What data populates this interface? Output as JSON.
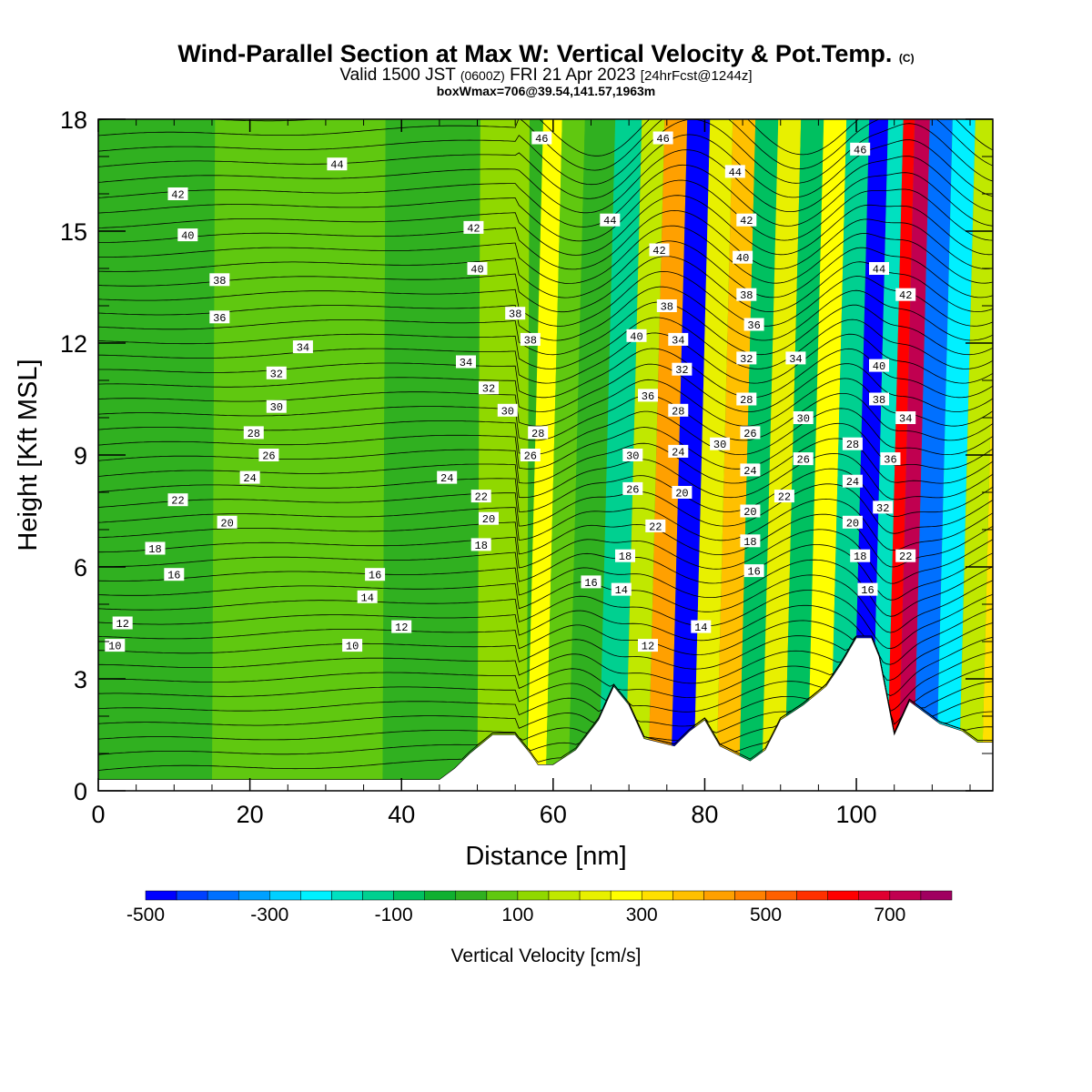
{
  "header": {
    "title": "Wind-Parallel Section at Max W: Vertical Velocity & Pot.Temp.",
    "title_mark": "(C)",
    "valid_prefix": "Valid 1500 JST",
    "valid_utc": "(0600Z)",
    "valid_date": "FRI 21 Apr 2023",
    "forecast": "[24hrFcst@1244z]",
    "boxmax": "boxWmax=706@39.54,141.57,1963m"
  },
  "chart_data": {
    "type": "heatmap",
    "title": "Wind-Parallel Section at Max W: Vertical Velocity & Pot.Temp.",
    "xlabel": "Distance [nm]",
    "ylabel": "Height [Kft MSL]",
    "xlim": [
      0,
      118
    ],
    "ylim": [
      0,
      18
    ],
    "x_ticks": [
      0,
      20,
      40,
      60,
      80,
      100
    ],
    "y_ticks": [
      0,
      3,
      6,
      9,
      12,
      15,
      18
    ],
    "colorbar": {
      "label": "Vertical Velocity [cm/s]",
      "range": [
        -500,
        800
      ],
      "step": 50,
      "tick_labels": [
        -500,
        -300,
        -100,
        100,
        300,
        500,
        700
      ],
      "colors": [
        "#0000ff",
        "#0040ff",
        "#0070ff",
        "#00a0ff",
        "#00d0ff",
        "#00f0ff",
        "#00e0c0",
        "#00d090",
        "#00c060",
        "#10b030",
        "#30b020",
        "#60c810",
        "#90d800",
        "#c0e800",
        "#e8f000",
        "#ffff00",
        "#ffe000",
        "#ffc000",
        "#ffa000",
        "#ff8000",
        "#ff6000",
        "#ff3000",
        "#ff0000",
        "#e00030",
        "#c00050",
        "#a00060"
      ]
    },
    "vertical_velocity_columns": [
      {
        "x": 0,
        "w": 30
      },
      {
        "x": 30,
        "w": 70
      },
      {
        "x": 45,
        "w": 20
      },
      {
        "x": 55,
        "w": 120
      },
      {
        "x": 58,
        "w": 260
      },
      {
        "x": 60,
        "w": 60
      },
      {
        "x": 64,
        "w": 30
      },
      {
        "x": 68,
        "w": -120
      },
      {
        "x": 71,
        "w": 180
      },
      {
        "x": 74,
        "w": 420
      },
      {
        "x": 77,
        "w": -480
      },
      {
        "x": 80,
        "w": 200
      },
      {
        "x": 83,
        "w": 350
      },
      {
        "x": 86,
        "w": -100
      },
      {
        "x": 89,
        "w": 220
      },
      {
        "x": 92,
        "w": -80
      },
      {
        "x": 95,
        "w": 260
      },
      {
        "x": 98,
        "w": -120
      },
      {
        "x": 101,
        "w": -460
      },
      {
        "x": 103,
        "w": -200
      },
      {
        "x": 105,
        "w": 640
      },
      {
        "x": 106,
        "w": 706
      },
      {
        "x": 109,
        "w": -380
      },
      {
        "x": 112,
        "w": -250
      },
      {
        "x": 115,
        "w": 150
      },
      {
        "x": 118,
        "w": 320
      }
    ],
    "terrain": [
      {
        "x": 0,
        "h": 0.3
      },
      {
        "x": 45,
        "h": 0.3
      },
      {
        "x": 47,
        "h": 0.6
      },
      {
        "x": 49,
        "h": 1.0
      },
      {
        "x": 52,
        "h": 1.5
      },
      {
        "x": 55,
        "h": 1.5
      },
      {
        "x": 57,
        "h": 1.0
      },
      {
        "x": 58,
        "h": 0.7
      },
      {
        "x": 60,
        "h": 0.7
      },
      {
        "x": 63,
        "h": 1.1
      },
      {
        "x": 66,
        "h": 1.9
      },
      {
        "x": 68,
        "h": 2.8
      },
      {
        "x": 70,
        "h": 2.3
      },
      {
        "x": 72,
        "h": 1.4
      },
      {
        "x": 74,
        "h": 1.3
      },
      {
        "x": 76,
        "h": 1.2
      },
      {
        "x": 78,
        "h": 1.6
      },
      {
        "x": 80,
        "h": 1.9
      },
      {
        "x": 82,
        "h": 1.2
      },
      {
        "x": 84,
        "h": 1.0
      },
      {
        "x": 86,
        "h": 0.8
      },
      {
        "x": 88,
        "h": 1.1
      },
      {
        "x": 90,
        "h": 1.9
      },
      {
        "x": 93,
        "h": 2.3
      },
      {
        "x": 96,
        "h": 2.8
      },
      {
        "x": 98,
        "h": 3.4
      },
      {
        "x": 100,
        "h": 4.1
      },
      {
        "x": 102,
        "h": 4.1
      },
      {
        "x": 103,
        "h": 3.6
      },
      {
        "x": 105,
        "h": 1.5
      },
      {
        "x": 107,
        "h": 2.4
      },
      {
        "x": 109,
        "h": 2.1
      },
      {
        "x": 111,
        "h": 1.8
      },
      {
        "x": 114,
        "h": 1.6
      },
      {
        "x": 116,
        "h": 1.3
      },
      {
        "x": 118,
        "h": 1.3
      }
    ],
    "theta_labels": [
      {
        "x": 31.5,
        "y": 16.8,
        "text": "44"
      },
      {
        "x": 10.5,
        "y": 16.0,
        "text": "42"
      },
      {
        "x": 11.8,
        "y": 14.9,
        "text": "40"
      },
      {
        "x": 16.0,
        "y": 13.7,
        "text": "38"
      },
      {
        "x": 16.0,
        "y": 12.7,
        "text": "36"
      },
      {
        "x": 27.0,
        "y": 11.9,
        "text": "34"
      },
      {
        "x": 23.5,
        "y": 11.2,
        "text": "32"
      },
      {
        "x": 23.5,
        "y": 10.3,
        "text": "30"
      },
      {
        "x": 20.5,
        "y": 9.6,
        "text": "28"
      },
      {
        "x": 22.5,
        "y": 9.0,
        "text": "26"
      },
      {
        "x": 20.0,
        "y": 8.4,
        "text": "24"
      },
      {
        "x": 10.5,
        "y": 7.8,
        "text": "22"
      },
      {
        "x": 17.0,
        "y": 7.2,
        "text": "20"
      },
      {
        "x": 7.5,
        "y": 6.5,
        "text": "18"
      },
      {
        "x": 10.0,
        "y": 5.8,
        "text": "16"
      },
      {
        "x": 3.2,
        "y": 4.5,
        "text": "12"
      },
      {
        "x": 2.2,
        "y": 3.9,
        "text": "10"
      },
      {
        "x": 49.5,
        "y": 15.1,
        "text": "42"
      },
      {
        "x": 50.0,
        "y": 14.0,
        "text": "40"
      },
      {
        "x": 55.0,
        "y": 12.8,
        "text": "38"
      },
      {
        "x": 57.0,
        "y": 12.1,
        "text": "38"
      },
      {
        "x": 48.5,
        "y": 11.5,
        "text": "34"
      },
      {
        "x": 51.5,
        "y": 10.8,
        "text": "32"
      },
      {
        "x": 54.0,
        "y": 10.2,
        "text": "30"
      },
      {
        "x": 58.0,
        "y": 9.6,
        "text": "28"
      },
      {
        "x": 57.0,
        "y": 9.0,
        "text": "26"
      },
      {
        "x": 46.0,
        "y": 8.4,
        "text": "24"
      },
      {
        "x": 50.5,
        "y": 7.9,
        "text": "22"
      },
      {
        "x": 51.5,
        "y": 7.3,
        "text": "20"
      },
      {
        "x": 50.5,
        "y": 6.6,
        "text": "18"
      },
      {
        "x": 36.5,
        "y": 5.8,
        "text": "16"
      },
      {
        "x": 35.5,
        "y": 5.2,
        "text": "14"
      },
      {
        "x": 40.0,
        "y": 4.4,
        "text": "12"
      },
      {
        "x": 33.5,
        "y": 3.9,
        "text": "10"
      },
      {
        "x": 58.5,
        "y": 17.5,
        "text": "46"
      },
      {
        "x": 67.5,
        "y": 15.3,
        "text": "44"
      },
      {
        "x": 74.5,
        "y": 17.5,
        "text": "46"
      },
      {
        "x": 74.0,
        "y": 14.5,
        "text": "42"
      },
      {
        "x": 75.0,
        "y": 13.0,
        "text": "38"
      },
      {
        "x": 71.0,
        "y": 12.2,
        "text": "40"
      },
      {
        "x": 76.5,
        "y": 12.1,
        "text": "34"
      },
      {
        "x": 77.0,
        "y": 11.3,
        "text": "32"
      },
      {
        "x": 72.5,
        "y": 10.6,
        "text": "36"
      },
      {
        "x": 76.5,
        "y": 10.2,
        "text": "28"
      },
      {
        "x": 70.5,
        "y": 9.0,
        "text": "30"
      },
      {
        "x": 76.5,
        "y": 9.1,
        "text": "24"
      },
      {
        "x": 70.5,
        "y": 8.1,
        "text": "26"
      },
      {
        "x": 77.0,
        "y": 8.0,
        "text": "20"
      },
      {
        "x": 73.5,
        "y": 7.1,
        "text": "22"
      },
      {
        "x": 69.5,
        "y": 6.3,
        "text": "18"
      },
      {
        "x": 65.0,
        "y": 5.6,
        "text": "16"
      },
      {
        "x": 69.0,
        "y": 5.4,
        "text": "14"
      },
      {
        "x": 72.5,
        "y": 3.9,
        "text": "12"
      },
      {
        "x": 84.0,
        "y": 16.6,
        "text": "44"
      },
      {
        "x": 85.5,
        "y": 15.3,
        "text": "42"
      },
      {
        "x": 85.0,
        "y": 14.3,
        "text": "40"
      },
      {
        "x": 85.5,
        "y": 13.3,
        "text": "38"
      },
      {
        "x": 86.5,
        "y": 12.5,
        "text": "36"
      },
      {
        "x": 85.5,
        "y": 11.6,
        "text": "32"
      },
      {
        "x": 92.0,
        "y": 11.6,
        "text": "34"
      },
      {
        "x": 85.5,
        "y": 10.5,
        "text": "28"
      },
      {
        "x": 86.0,
        "y": 9.6,
        "text": "26"
      },
      {
        "x": 82.0,
        "y": 9.3,
        "text": "30"
      },
      {
        "x": 93.0,
        "y": 10.0,
        "text": "30"
      },
      {
        "x": 93.0,
        "y": 8.9,
        "text": "26"
      },
      {
        "x": 86.0,
        "y": 8.6,
        "text": "24"
      },
      {
        "x": 90.5,
        "y": 7.9,
        "text": "22"
      },
      {
        "x": 86.0,
        "y": 7.5,
        "text": "20"
      },
      {
        "x": 86.0,
        "y": 6.7,
        "text": "18"
      },
      {
        "x": 86.5,
        "y": 5.9,
        "text": "16"
      },
      {
        "x": 79.5,
        "y": 4.4,
        "text": "14"
      },
      {
        "x": 100.5,
        "y": 17.2,
        "text": "46"
      },
      {
        "x": 103.0,
        "y": 14.0,
        "text": "44"
      },
      {
        "x": 106.5,
        "y": 13.3,
        "text": "42"
      },
      {
        "x": 103.0,
        "y": 11.4,
        "text": "40"
      },
      {
        "x": 103.0,
        "y": 10.5,
        "text": "38"
      },
      {
        "x": 106.5,
        "y": 10.0,
        "text": "34"
      },
      {
        "x": 99.5,
        "y": 9.3,
        "text": "28"
      },
      {
        "x": 104.5,
        "y": 8.9,
        "text": "36"
      },
      {
        "x": 99.5,
        "y": 8.3,
        "text": "24"
      },
      {
        "x": 103.5,
        "y": 7.6,
        "text": "32"
      },
      {
        "x": 99.5,
        "y": 7.2,
        "text": "20"
      },
      {
        "x": 100.5,
        "y": 6.3,
        "text": "18"
      },
      {
        "x": 106.5,
        "y": 6.3,
        "text": "22"
      },
      {
        "x": 101.5,
        "y": 5.4,
        "text": "16"
      }
    ]
  }
}
